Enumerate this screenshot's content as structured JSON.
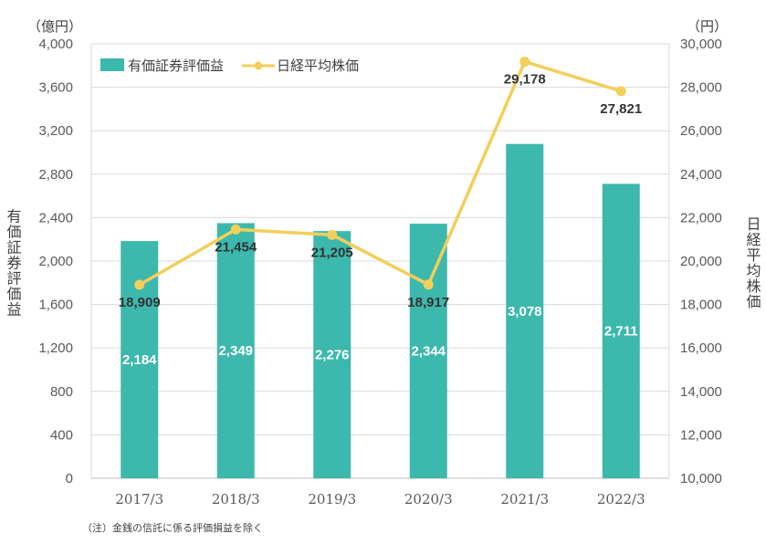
{
  "chart_data": {
    "type": "bar+line",
    "categories": [
      "2017/3",
      "2018/3",
      "2019/3",
      "2020/3",
      "2021/3",
      "2022/3"
    ],
    "series": [
      {
        "name": "有価証券評価益",
        "type": "bar",
        "axis": "left",
        "color": "#3db8ad",
        "values": [
          2184,
          2349,
          2276,
          2344,
          3078,
          2711
        ],
        "labels": [
          "2,184",
          "2,349",
          "2,276",
          "2,344",
          "3,078",
          "2,711"
        ]
      },
      {
        "name": "日経平均株価",
        "type": "line",
        "axis": "right",
        "color": "#f2cf5b",
        "values": [
          18909,
          21454,
          21205,
          18917,
          29178,
          27821
        ],
        "labels": [
          "18,909",
          "21,454",
          "21,205",
          "18,917",
          "29,178",
          "27,821"
        ]
      }
    ],
    "left_axis": {
      "unit": "（億円）",
      "title": "有価証券評価益",
      "ylim": [
        0,
        4000
      ],
      "ticks": [
        0,
        400,
        800,
        1200,
        1600,
        2000,
        2400,
        2800,
        3200,
        3600,
        4000
      ],
      "tick_labels": [
        "0",
        "400",
        "800",
        "1,200",
        "1,600",
        "2,000",
        "2,400",
        "2,800",
        "3,200",
        "3,600",
        "4,000"
      ]
    },
    "right_axis": {
      "unit": "（円）",
      "title": "日経平均株価",
      "ylim": [
        10000,
        30000
      ],
      "tick_labels": [
        "10,000",
        "12,000",
        "14,000",
        "16,000",
        "18,000",
        "20,000",
        "22,000",
        "24,000",
        "26,000",
        "28,000",
        "30,000"
      ]
    },
    "grid": true,
    "legend": "top-left",
    "note": "（注）金銭の信託に係る評価損益を除く"
  }
}
